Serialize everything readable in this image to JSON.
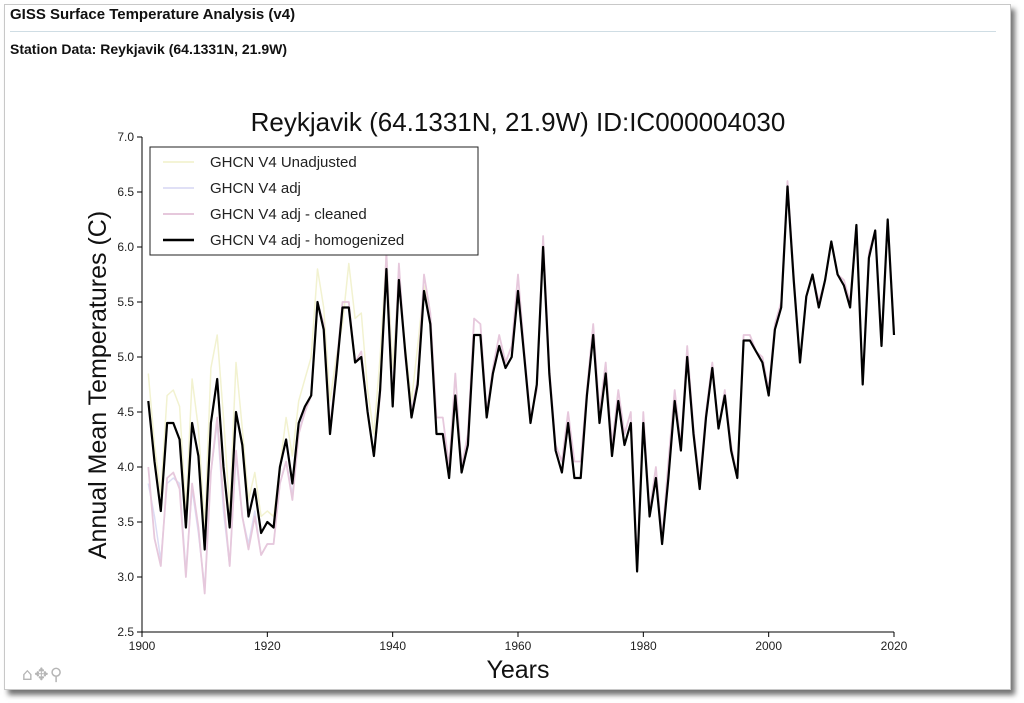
{
  "page": {
    "header_title": "GISS Surface Temperature Analysis (v4)",
    "subheader": "Station Data: Reykjavik (64.1331N, 21.9W)"
  },
  "toolbar": [
    {
      "icon": "home-icon",
      "glyph": "⌂"
    },
    {
      "icon": "pan-icon",
      "glyph": "✥"
    },
    {
      "icon": "zoom-icon",
      "glyph": "⚲"
    }
  ],
  "chart_data": {
    "type": "line",
    "title": "Reykjavik (64.1331N, 21.9W) ID:IC000004030",
    "xlabel": "Years",
    "ylabel": "Annual Mean Temperatures (C)",
    "xlim": [
      1900,
      2020
    ],
    "ylim": [
      2.5,
      7.0
    ],
    "x_ticks": [
      1900,
      1920,
      1940,
      1960,
      1980,
      2000,
      2020
    ],
    "y_ticks": [
      2.5,
      3.0,
      3.5,
      4.0,
      4.5,
      5.0,
      5.5,
      6.0,
      6.5,
      7.0
    ],
    "grid": false,
    "legend_position": "top-left",
    "series": [
      {
        "name": "GHCN V4 Unadjusted",
        "color": "#f2f2d0",
        "width": 1.5,
        "x": [
          1901,
          1902,
          1903,
          1904,
          1905,
          1906,
          1907,
          1908,
          1909,
          1910,
          1911,
          1912,
          1913,
          1914,
          1915,
          1916,
          1917,
          1918,
          1919,
          1920,
          1921,
          1922,
          1923,
          1924,
          1925,
          1926,
          1927,
          1928,
          1929,
          1930,
          1931,
          1932,
          1933,
          1934,
          1935,
          1936,
          1937,
          1938,
          1939,
          1940,
          1941,
          1942,
          1943,
          1944,
          1945,
          1946
        ],
        "y": [
          4.85,
          4.2,
          3.75,
          4.65,
          4.7,
          4.55,
          3.6,
          4.8,
          4.35,
          3.45,
          4.9,
          5.2,
          4.45,
          3.6,
          4.95,
          4.35,
          3.7,
          3.95,
          3.55,
          3.6,
          3.55,
          4.0,
          4.45,
          4.1,
          4.6,
          4.8,
          5.0,
          5.8,
          5.45,
          4.6,
          5.0,
          5.3,
          5.85,
          5.35,
          5.4,
          4.7,
          4.3,
          5.0,
          5.95,
          4.9,
          5.75,
          5.1,
          4.6,
          5.1,
          5.65,
          5.35
        ]
      },
      {
        "name": "GHCN V4 adj",
        "color": "#dcdcf4",
        "width": 1.5,
        "x": [
          1901,
          1902,
          1903,
          1904,
          1905,
          1906,
          1907,
          1908,
          1909,
          1910,
          1911,
          1912,
          1913,
          1914,
          1915,
          1916,
          1917,
          1918,
          1919,
          1920,
          1921,
          1922,
          1923,
          1924,
          1925,
          1926
        ],
        "y": [
          3.85,
          3.55,
          3.15,
          3.85,
          3.9,
          3.85,
          3.05,
          3.8,
          3.4,
          2.9,
          3.95,
          4.4,
          3.6,
          3.1,
          4.1,
          3.55,
          3.3,
          3.6,
          3.2,
          3.3,
          3.3,
          3.85,
          4.05,
          3.75,
          4.3,
          4.55
        ]
      },
      {
        "name": "GHCN V4 adj - cleaned",
        "color": "#e6c8dc",
        "width": 1.8,
        "x": [
          1901,
          1902,
          1903,
          1904,
          1905,
          1906,
          1907,
          1908,
          1909,
          1910,
          1911,
          1912,
          1913,
          1914,
          1915,
          1916,
          1917,
          1918,
          1919,
          1920,
          1921,
          1922,
          1923,
          1924,
          1925,
          1926,
          1927,
          1928,
          1929,
          1930,
          1931,
          1932,
          1933,
          1934,
          1935,
          1936,
          1937,
          1938,
          1939,
          1940,
          1941,
          1942,
          1943,
          1944,
          1945,
          1946,
          1947,
          1948,
          1949,
          1950,
          1951,
          1952,
          1953,
          1954,
          1955,
          1956,
          1957,
          1958,
          1959,
          1960,
          1961,
          1962,
          1963,
          1964,
          1965,
          1966,
          1967,
          1968,
          1969,
          1970,
          1971,
          1972,
          1973,
          1974,
          1975,
          1976,
          1977,
          1978,
          1979,
          1980,
          1981,
          1982,
          1983,
          1984,
          1985,
          1986,
          1987,
          1988,
          1989,
          1990,
          1991,
          1992,
          1993,
          1994,
          1995,
          1996,
          1997,
          1998,
          1999,
          2000,
          2001,
          2002,
          2003,
          2004,
          2005,
          2006,
          2007,
          2008,
          2009,
          2010,
          2011,
          2012,
          2013,
          2014,
          2015,
          2016,
          2017,
          2018,
          2019,
          2020
        ],
        "y": [
          4.0,
          3.35,
          3.1,
          3.9,
          3.95,
          3.8,
          3.0,
          3.85,
          3.45,
          2.85,
          3.95,
          4.45,
          3.7,
          3.1,
          4.15,
          3.55,
          3.25,
          3.55,
          3.2,
          3.3,
          3.3,
          3.85,
          4.05,
          3.7,
          4.3,
          4.5,
          4.65,
          5.5,
          5.3,
          4.35,
          4.9,
          5.5,
          5.5,
          4.95,
          5.05,
          4.5,
          4.1,
          4.65,
          5.95,
          4.6,
          5.85,
          5.0,
          4.5,
          4.8,
          5.75,
          5.4,
          4.45,
          4.45,
          4.0,
          4.85,
          4.0,
          4.3,
          5.35,
          5.3,
          4.5,
          4.9,
          5.2,
          4.95,
          5.1,
          5.75,
          5.05,
          4.45,
          4.7,
          6.1,
          4.9,
          4.2,
          4.05,
          4.5,
          4.05,
          4.05,
          4.7,
          5.3,
          4.5,
          4.95,
          4.2,
          4.7,
          4.3,
          4.5,
          3.1,
          4.5,
          3.6,
          4.0,
          3.35,
          4.05,
          4.7,
          4.2,
          5.1,
          4.35,
          3.85,
          4.5,
          4.95,
          4.35,
          4.7,
          4.2,
          3.9,
          5.2,
          5.2,
          5.05,
          5.0,
          4.7,
          5.3,
          5.5,
          6.6,
          5.75,
          4.95,
          5.55,
          5.75,
          5.5,
          5.7,
          6.05,
          5.75,
          5.7,
          5.5,
          6.2,
          4.75,
          5.95,
          6.15,
          5.15,
          6.25,
          5.25
        ]
      },
      {
        "name": "GHCN V4 adj - homogenized",
        "color": "#000000",
        "width": 2.2,
        "x": [
          1901,
          1902,
          1903,
          1904,
          1905,
          1906,
          1907,
          1908,
          1909,
          1910,
          1911,
          1912,
          1913,
          1914,
          1915,
          1916,
          1917,
          1918,
          1919,
          1920,
          1921,
          1922,
          1923,
          1924,
          1925,
          1926,
          1927,
          1928,
          1929,
          1930,
          1931,
          1932,
          1933,
          1934,
          1935,
          1936,
          1937,
          1938,
          1939,
          1940,
          1941,
          1942,
          1943,
          1944,
          1945,
          1946,
          1947,
          1948,
          1949,
          1950,
          1951,
          1952,
          1953,
          1954,
          1955,
          1956,
          1957,
          1958,
          1959,
          1960,
          1961,
          1962,
          1963,
          1964,
          1965,
          1966,
          1967,
          1968,
          1969,
          1970,
          1971,
          1972,
          1973,
          1974,
          1975,
          1976,
          1977,
          1978,
          1979,
          1980,
          1981,
          1982,
          1983,
          1984,
          1985,
          1986,
          1987,
          1988,
          1989,
          1990,
          1991,
          1992,
          1993,
          1994,
          1995,
          1996,
          1997,
          1998,
          1999,
          2000,
          2001,
          2002,
          2003,
          2004,
          2005,
          2006,
          2007,
          2008,
          2009,
          2010,
          2011,
          2012,
          2013,
          2014,
          2015,
          2016,
          2017,
          2018,
          2019,
          2020
        ],
        "y": [
          4.6,
          4.05,
          3.6,
          4.4,
          4.4,
          4.25,
          3.45,
          4.4,
          4.1,
          3.25,
          4.4,
          4.8,
          4.0,
          3.45,
          4.5,
          4.2,
          3.55,
          3.8,
          3.4,
          3.5,
          3.45,
          4.0,
          4.25,
          3.85,
          4.4,
          4.55,
          4.65,
          5.5,
          5.25,
          4.3,
          4.85,
          5.45,
          5.45,
          4.95,
          5.0,
          4.5,
          4.1,
          4.7,
          5.8,
          4.55,
          5.7,
          5.05,
          4.45,
          4.75,
          5.6,
          5.3,
          4.3,
          4.3,
          3.9,
          4.65,
          3.95,
          4.2,
          5.2,
          5.2,
          4.45,
          4.85,
          5.1,
          4.9,
          5.0,
          5.6,
          5.0,
          4.4,
          4.75,
          6.0,
          4.85,
          4.15,
          3.95,
          4.4,
          3.9,
          3.9,
          4.65,
          5.2,
          4.4,
          4.85,
          4.1,
          4.6,
          4.2,
          4.4,
          3.05,
          4.4,
          3.55,
          3.9,
          3.3,
          3.9,
          4.6,
          4.15,
          5.0,
          4.3,
          3.8,
          4.45,
          4.9,
          4.35,
          4.65,
          4.15,
          3.9,
          5.15,
          5.15,
          5.05,
          4.95,
          4.65,
          5.25,
          5.45,
          6.55,
          5.7,
          4.95,
          5.55,
          5.75,
          5.45,
          5.7,
          6.05,
          5.75,
          5.65,
          5.45,
          6.2,
          4.75,
          5.9,
          6.15,
          5.1,
          6.25,
          5.2
        ]
      }
    ]
  }
}
